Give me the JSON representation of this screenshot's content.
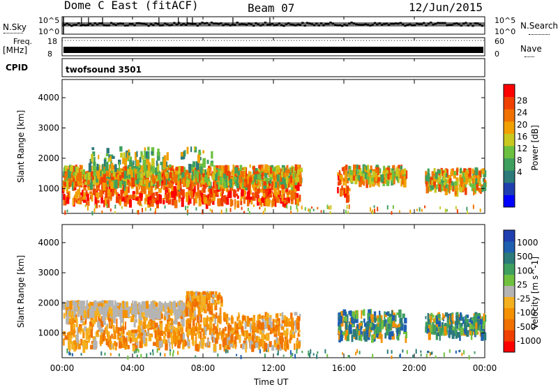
{
  "header": {
    "title": "Dome C East (fitACF)",
    "beam": "Beam 07",
    "date": "12/Jun/2015"
  },
  "strips": {
    "nsky_label": "N.Sky",
    "nsearch_label": "N.Search",
    "nsky_ticks": [
      "10^5",
      "10^0"
    ],
    "nsearch_ticks": [
      "10^5",
      "10^0"
    ],
    "freq_label_1": "Freq.",
    "freq_label_2": "[MHz]",
    "freq_ticks": [
      "18",
      "8"
    ],
    "nave_label": "Nave",
    "nave_ticks": [
      "60",
      "0"
    ],
    "cpid_label": "CPID",
    "cpid_value": "twofsound 3501"
  },
  "colors": {
    "power": [
      "#0000ff",
      "#1f3fb0",
      "#2c7a7a",
      "#3f9f5f",
      "#6cc040",
      "#c8c820",
      "#f0a000",
      "#f07000",
      "#f04000",
      "#ff0000"
    ],
    "velocity_neg": [
      "#ff0000",
      "#f04000",
      "#f07000",
      "#f59000",
      "#f5b020"
    ],
    "velocity_mid": "#b4b4b4",
    "velocity_pos": [
      "#70c040",
      "#3f9f5f",
      "#2c7a7a",
      "#1f5fb0",
      "#1f3fb0"
    ]
  },
  "chart_data": [
    {
      "type": "heatmap",
      "quantity": "power",
      "ylabel": "Slant Range [km]",
      "xlabel": "",
      "yticks": [
        "4000",
        "3000",
        "2000",
        "1000"
      ],
      "ylim": [
        180,
        4600
      ],
      "xlim": [
        0,
        24
      ],
      "colorbar_label": "Power [dB]",
      "colorbar_ticks": [
        "28",
        "24",
        "20",
        "16",
        "12",
        "8",
        "4"
      ],
      "colorbar_range": [
        0,
        32
      ],
      "regions": [
        {
          "t": [
            0,
            13.5
          ],
          "r": [
            600,
            1600
          ],
          "level": "high"
        },
        {
          "t": [
            0,
            13.5
          ],
          "r": [
            1200,
            1800
          ],
          "level": "mid"
        },
        {
          "t": [
            1.5,
            8.5
          ],
          "r": [
            1800,
            2400
          ],
          "level": "low"
        },
        {
          "t": [
            15.6,
            16.2
          ],
          "r": [
            700,
            1800
          ],
          "level": "high"
        },
        {
          "t": [
            16.2,
            19.5
          ],
          "r": [
            1300,
            1800
          ],
          "level": "mid"
        },
        {
          "t": [
            20.6,
            24
          ],
          "r": [
            1000,
            1700
          ],
          "level": "mid"
        }
      ]
    },
    {
      "type": "heatmap",
      "quantity": "velocity",
      "ylabel": "Slant Range [km]",
      "xlabel": "Time UT",
      "xticks": [
        "00:00",
        "04:00",
        "08:00",
        "12:00",
        "16:00",
        "20:00",
        "00:00"
      ],
      "yticks": [
        "4000",
        "3000",
        "2000",
        "1000"
      ],
      "ylim": [
        180,
        4600
      ],
      "xlim": [
        0,
        24
      ],
      "colorbar_label": "Velocity [m s^-1]",
      "colorbar_ticks": [
        "1000",
        "500",
        "100",
        "25",
        "-25",
        "-100",
        "-500",
        "-1000"
      ],
      "regions": [
        {
          "t": [
            0,
            13.5
          ],
          "r": [
            600,
            1700
          ],
          "level": "neg"
        },
        {
          "t": [
            0,
            7
          ],
          "r": [
            1700,
            2100
          ],
          "level": "zero"
        },
        {
          "t": [
            7,
            9
          ],
          "r": [
            1800,
            2400
          ],
          "level": "neg"
        },
        {
          "t": [
            15.6,
            19.5
          ],
          "r": [
            900,
            1800
          ],
          "level": "pos"
        },
        {
          "t": [
            20.6,
            24
          ],
          "r": [
            1000,
            1700
          ],
          "level": "pos"
        }
      ]
    }
  ]
}
